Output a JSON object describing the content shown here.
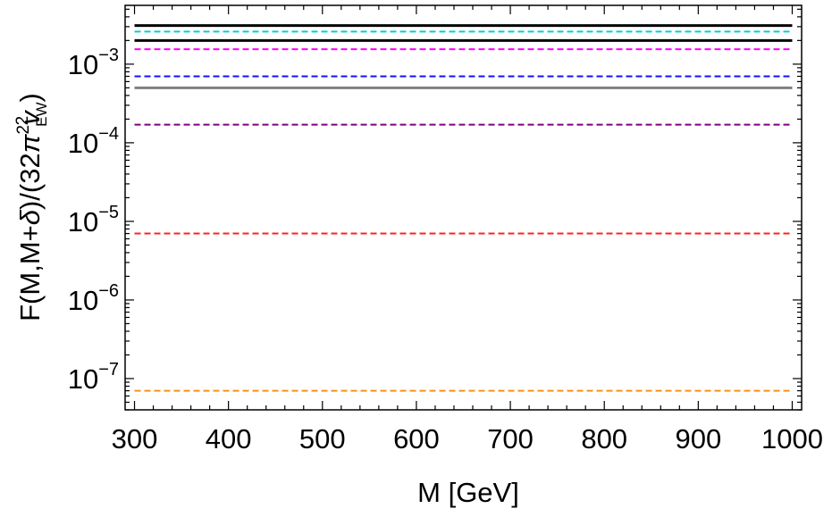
{
  "chart_data": {
    "type": "line",
    "scale_y": "log",
    "xlabel": "M [GeV]",
    "ylabel": {
      "prefix": "F(M,M+",
      "delta": "δ",
      "middle": ")/(32",
      "pi": "π",
      "sq1": "2",
      "v": "v",
      "sub": "EW",
      "sq2": "2",
      "suffix": ")"
    },
    "xlim": [
      290,
      1010
    ],
    "ylim": [
      4e-08,
      0.0056
    ],
    "x_ticks": [
      {
        "value": 300,
        "label": "300"
      },
      {
        "value": 400,
        "label": "400"
      },
      {
        "value": 500,
        "label": "500"
      },
      {
        "value": 600,
        "label": "600"
      },
      {
        "value": 700,
        "label": "700"
      },
      {
        "value": 800,
        "label": "800"
      },
      {
        "value": 900,
        "label": "900"
      },
      {
        "value": 1000,
        "label": "1000"
      }
    ],
    "y_ticks": [
      {
        "value": 0.001,
        "base": "10",
        "exp": "−3"
      },
      {
        "value": 0.0001,
        "base": "10",
        "exp": "−4"
      },
      {
        "value": 1e-05,
        "base": "10",
        "exp": "−5"
      },
      {
        "value": 1e-06,
        "base": "10",
        "exp": "−6"
      },
      {
        "value": 1e-07,
        "base": "10",
        "exp": "−7"
      }
    ],
    "x": [
      300,
      1000
    ],
    "series": [
      {
        "values": [
          0.0031,
          0.0031
        ],
        "color": "#000000",
        "style": "solid"
      },
      {
        "values": [
          0.0026,
          0.0026
        ],
        "color": "#00d0d0",
        "style": "dashed"
      },
      {
        "values": [
          0.002,
          0.002
        ],
        "color": "#000000",
        "style": "solid"
      },
      {
        "values": [
          0.00155,
          0.00155
        ],
        "color": "#ff00ff",
        "style": "dashed"
      },
      {
        "values": [
          0.0007,
          0.0007
        ],
        "color": "#1010ff",
        "style": "dashed"
      },
      {
        "values": [
          0.0005,
          0.0005
        ],
        "color": "#808080",
        "style": "solid"
      },
      {
        "values": [
          0.00017,
          0.00017
        ],
        "color": "#800080",
        "style": "dashed"
      },
      {
        "values": [
          7e-06,
          7e-06
        ],
        "color": "#ff2020",
        "style": "dashed"
      },
      {
        "values": [
          7e-08,
          7e-08
        ],
        "color": "#ff9010",
        "style": "dashed"
      }
    ]
  }
}
